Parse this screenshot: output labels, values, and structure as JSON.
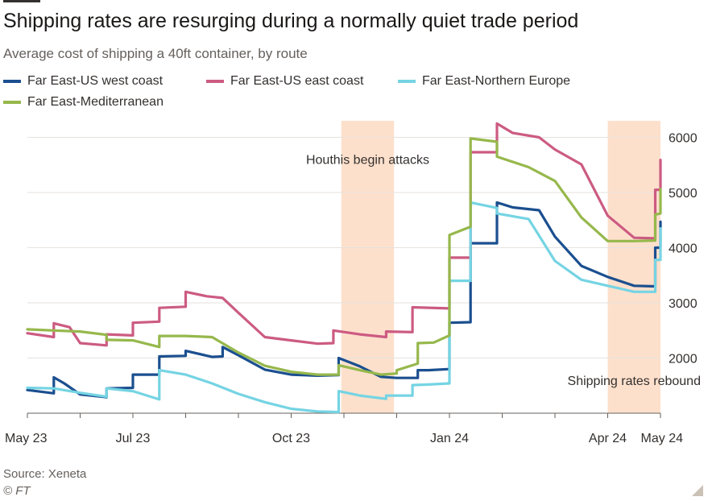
{
  "title": "Shipping rates are resurging during a normally quiet trade period",
  "subtitle": "Average cost of shipping a 40ft container, by route",
  "source": "Source: Xeneta",
  "copyright": "© FT",
  "chart_data": {
    "type": "line",
    "x_unit": "month index (0 = May 2023)",
    "x_ticks": [
      {
        "x": 0,
        "label": "May 23"
      },
      {
        "x": 2,
        "label": "Jul 23"
      },
      {
        "x": 5,
        "label": "Oct 23"
      },
      {
        "x": 8,
        "label": "Jan 24"
      },
      {
        "x": 11,
        "label": "Apr 24"
      },
      {
        "x": 12,
        "label": "May 24"
      }
    ],
    "y_ticks": [
      2000,
      3000,
      4000,
      5000,
      6000
    ],
    "xlim": [
      0,
      12
    ],
    "ylim": [
      1000,
      6300
    ],
    "grid": true,
    "legend_position": "top",
    "shaded_periods": [
      {
        "start": 5.95,
        "end": 6.95
      },
      {
        "start": 11.0,
        "end": 12.0
      }
    ],
    "annotations": [
      {
        "text": "Houthis begin attacks",
        "x": 6.45,
        "y": 5520
      },
      {
        "text": "Shipping rates rebound",
        "x": 11.5,
        "y": 1510
      }
    ],
    "series": [
      {
        "name": "Far East-US west coast",
        "color": "#1b4f8f",
        "points": [
          [
            0,
            1420
          ],
          [
            0.5,
            1360
          ],
          [
            0.5,
            1650
          ],
          [
            0.7,
            1540
          ],
          [
            1.0,
            1340
          ],
          [
            1.5,
            1290
          ],
          [
            1.5,
            1450
          ],
          [
            2.0,
            1460
          ],
          [
            2.0,
            1700
          ],
          [
            2.5,
            1700
          ],
          [
            2.5,
            2030
          ],
          [
            3.0,
            2040
          ],
          [
            3.0,
            2130
          ],
          [
            3.5,
            2020
          ],
          [
            3.7,
            2030
          ],
          [
            3.7,
            2200
          ],
          [
            4.0,
            2050
          ],
          [
            4.5,
            1790
          ],
          [
            5.0,
            1700
          ],
          [
            5.5,
            1680
          ],
          [
            5.9,
            1690
          ],
          [
            5.9,
            2000
          ],
          [
            6.3,
            1850
          ],
          [
            6.7,
            1660
          ],
          [
            7.0,
            1640
          ],
          [
            7.4,
            1640
          ],
          [
            7.4,
            1780
          ],
          [
            7.6,
            1780
          ],
          [
            8.0,
            1800
          ],
          [
            8.0,
            2640
          ],
          [
            8.4,
            2650
          ],
          [
            8.4,
            4080
          ],
          [
            8.9,
            4080
          ],
          [
            8.9,
            4820
          ],
          [
            9.2,
            4730
          ],
          [
            9.7,
            4680
          ],
          [
            10.0,
            4200
          ],
          [
            10.5,
            3670
          ],
          [
            11.0,
            3470
          ],
          [
            11.5,
            3310
          ],
          [
            11.9,
            3300
          ],
          [
            11.9,
            4000
          ],
          [
            12.0,
            4000
          ],
          [
            12.0,
            4470
          ]
        ]
      },
      {
        "name": "Far East-US east coast",
        "color": "#cc5b82",
        "points": [
          [
            0,
            2450
          ],
          [
            0.5,
            2380
          ],
          [
            0.5,
            2630
          ],
          [
            0.8,
            2560
          ],
          [
            1.0,
            2270
          ],
          [
            1.5,
            2230
          ],
          [
            1.5,
            2430
          ],
          [
            2.0,
            2410
          ],
          [
            2.0,
            2640
          ],
          [
            2.5,
            2660
          ],
          [
            2.5,
            2910
          ],
          [
            3.0,
            2930
          ],
          [
            3.0,
            3200
          ],
          [
            3.4,
            3120
          ],
          [
            3.7,
            3090
          ],
          [
            4.0,
            2820
          ],
          [
            4.5,
            2380
          ],
          [
            5.0,
            2320
          ],
          [
            5.5,
            2260
          ],
          [
            5.8,
            2270
          ],
          [
            5.8,
            2500
          ],
          [
            6.3,
            2430
          ],
          [
            6.8,
            2380
          ],
          [
            6.8,
            2480
          ],
          [
            7.3,
            2470
          ],
          [
            7.3,
            2920
          ],
          [
            8.0,
            2900
          ],
          [
            8.0,
            3820
          ],
          [
            8.4,
            3820
          ],
          [
            8.4,
            5730
          ],
          [
            8.9,
            5730
          ],
          [
            8.9,
            6250
          ],
          [
            9.2,
            6080
          ],
          [
            9.7,
            6000
          ],
          [
            10.0,
            5780
          ],
          [
            10.5,
            5510
          ],
          [
            11.0,
            4580
          ],
          [
            11.5,
            4180
          ],
          [
            11.9,
            4170
          ],
          [
            11.9,
            5050
          ],
          [
            12.0,
            5050
          ],
          [
            12.0,
            5590
          ]
        ]
      },
      {
        "name": "Far East-Northern Europe",
        "color": "#75d4e3",
        "points": [
          [
            0,
            1460
          ],
          [
            0.5,
            1450
          ],
          [
            1.0,
            1370
          ],
          [
            1.5,
            1300
          ],
          [
            1.5,
            1450
          ],
          [
            2.0,
            1400
          ],
          [
            2.5,
            1250
          ],
          [
            2.5,
            1780
          ],
          [
            3.0,
            1700
          ],
          [
            3.5,
            1540
          ],
          [
            4.0,
            1350
          ],
          [
            4.5,
            1200
          ],
          [
            5.0,
            1080
          ],
          [
            5.5,
            1030
          ],
          [
            5.9,
            1020
          ],
          [
            5.9,
            1400
          ],
          [
            6.3,
            1320
          ],
          [
            6.8,
            1260
          ],
          [
            6.8,
            1320
          ],
          [
            7.3,
            1320
          ],
          [
            7.3,
            1510
          ],
          [
            7.6,
            1520
          ],
          [
            8.0,
            1540
          ],
          [
            8.0,
            3400
          ],
          [
            8.4,
            3400
          ],
          [
            8.4,
            4820
          ],
          [
            8.9,
            4720
          ],
          [
            8.9,
            4620
          ],
          [
            9.5,
            4520
          ],
          [
            10.0,
            3760
          ],
          [
            10.5,
            3420
          ],
          [
            11.0,
            3310
          ],
          [
            11.5,
            3200
          ],
          [
            11.9,
            3200
          ],
          [
            11.9,
            3780
          ],
          [
            12.0,
            3780
          ],
          [
            12.0,
            4350
          ]
        ]
      },
      {
        "name": "Far East-Mediterranean",
        "color": "#96b84c",
        "points": [
          [
            0,
            2520
          ],
          [
            0.5,
            2500
          ],
          [
            1.0,
            2480
          ],
          [
            1.5,
            2420
          ],
          [
            1.5,
            2330
          ],
          [
            2.0,
            2320
          ],
          [
            2.5,
            2200
          ],
          [
            2.5,
            2400
          ],
          [
            3.0,
            2400
          ],
          [
            3.5,
            2380
          ],
          [
            4.0,
            2100
          ],
          [
            4.5,
            1860
          ],
          [
            5.0,
            1750
          ],
          [
            5.5,
            1700
          ],
          [
            5.9,
            1700
          ],
          [
            5.9,
            1870
          ],
          [
            6.3,
            1780
          ],
          [
            6.7,
            1700
          ],
          [
            7.0,
            1720
          ],
          [
            7.0,
            1780
          ],
          [
            7.4,
            1900
          ],
          [
            7.4,
            2270
          ],
          [
            7.7,
            2280
          ],
          [
            8.0,
            2410
          ],
          [
            8.0,
            4230
          ],
          [
            8.4,
            4380
          ],
          [
            8.4,
            5980
          ],
          [
            8.9,
            5920
          ],
          [
            8.9,
            5650
          ],
          [
            9.5,
            5460
          ],
          [
            10.0,
            5210
          ],
          [
            10.5,
            4550
          ],
          [
            11.0,
            4120
          ],
          [
            11.5,
            4120
          ],
          [
            11.9,
            4130
          ],
          [
            11.9,
            4600
          ],
          [
            12.0,
            4620
          ],
          [
            12.0,
            5060
          ]
        ]
      }
    ]
  }
}
